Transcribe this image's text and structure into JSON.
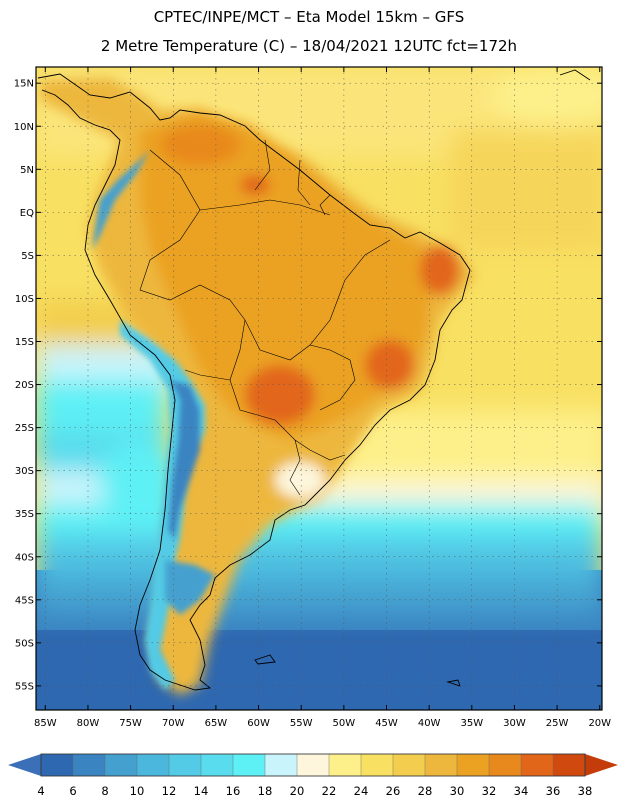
{
  "header": {
    "title_line1": "CPTEC/INPE/MCT –  Eta Model 15km – GFS",
    "title_line2": "2 Metre Temperature (C) – 18/04/2021 12UTC fct=172h"
  },
  "map": {
    "lat_labels": [
      "15N",
      "10N",
      "5N",
      "EQ",
      "5S",
      "10S",
      "15S",
      "20S",
      "25S",
      "30S",
      "35S",
      "40S",
      "45S",
      "50S",
      "55S"
    ],
    "lon_labels": [
      "85W",
      "80W",
      "75W",
      "70W",
      "65W",
      "60W",
      "55W",
      "50W",
      "45W",
      "40W",
      "35W",
      "30W",
      "25W",
      "20W"
    ]
  },
  "colorbar": {
    "labels": [
      "4",
      "6",
      "8",
      "10",
      "12",
      "14",
      "16",
      "18",
      "20",
      "22",
      "24",
      "26",
      "28",
      "30",
      "32",
      "34",
      "36",
      "38"
    ],
    "low_end_color": "#3b6fb8",
    "high_end_color": "#c43c0a",
    "colors": [
      "#2e68b0",
      "#3a84c2",
      "#44a0cf",
      "#4cb7dd",
      "#53cbe6",
      "#59dced",
      "#5df0f5",
      "#c9f4fb",
      "#fdf6dc",
      "#fdf08a",
      "#f8e062",
      "#f3ce4e",
      "#edb73d",
      "#eba223",
      "#e8891e",
      "#e2661a",
      "#d04a10"
    ]
  }
}
